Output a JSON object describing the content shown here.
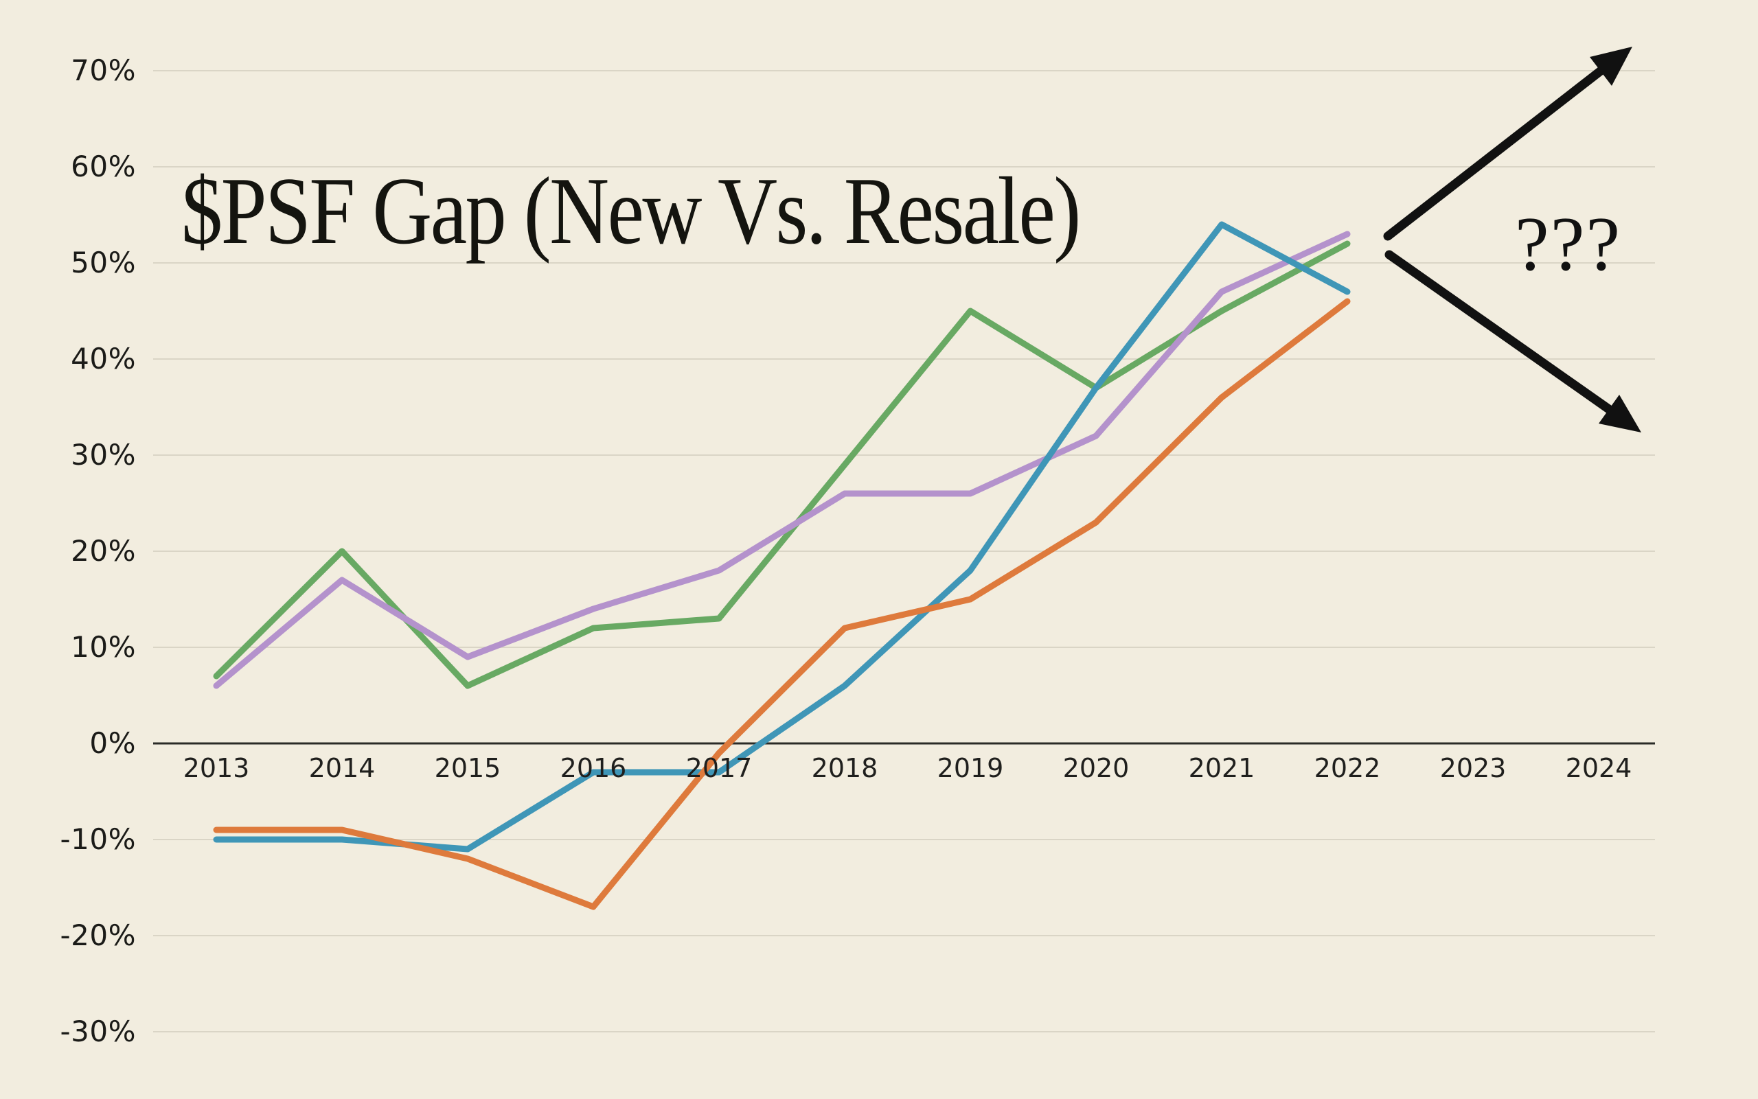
{
  "title": "$PSF Gap (New Vs. Resale)",
  "annotation": {
    "text": "???"
  },
  "colors": {
    "background": "#f2eddf",
    "gridline": "#dad5c6",
    "axis_line": "#2b2b27",
    "label_text": "#1b1b18",
    "annotation_ink": "#111111"
  },
  "chart_data": {
    "type": "line",
    "title": "$PSF Gap (New Vs. Resale)",
    "xlabel": "",
    "ylabel": "",
    "x_categories": [
      "2013",
      "2014",
      "2015",
      "2016",
      "2017",
      "2018",
      "2019",
      "2020",
      "2021",
      "2022",
      "2023",
      "2024"
    ],
    "data_start_year": 2013,
    "series": [
      {
        "name": "green",
        "color": "#68a963",
        "values": [
          7,
          20,
          6,
          12,
          13,
          29,
          45,
          37,
          45,
          52
        ]
      },
      {
        "name": "purple",
        "color": "#b492cc",
        "values": [
          6,
          17,
          9,
          14,
          18,
          26,
          26,
          32,
          47,
          53
        ]
      },
      {
        "name": "blue",
        "color": "#3f96b7",
        "values": [
          -10,
          -10,
          -11,
          -3,
          -3,
          6,
          18,
          37,
          54,
          47
        ]
      },
      {
        "name": "orange",
        "color": "#de7a3c",
        "values": [
          -9,
          -9,
          -12,
          -17,
          -1,
          12,
          15,
          23,
          36,
          46
        ]
      }
    ],
    "y_ticks": [
      {
        "value": 70,
        "label": "70%"
      },
      {
        "value": 60,
        "label": "60%"
      },
      {
        "value": 50,
        "label": "50%"
      },
      {
        "value": 40,
        "label": "40%"
      },
      {
        "value": 30,
        "label": "30%"
      },
      {
        "value": 20,
        "label": "20%"
      },
      {
        "value": 10,
        "label": "10%"
      },
      {
        "value": 0,
        "label": "0%"
      },
      {
        "value": -10,
        "label": "-10%"
      },
      {
        "value": -20,
        "label": "-20%"
      },
      {
        "value": -30,
        "label": "-30%"
      }
    ],
    "ylim": [
      -35,
      75
    ],
    "grid": "horizontal gridlines every 10%, zero line emphasized",
    "legend": "none",
    "annotations": [
      {
        "text": "???",
        "type": "diverging up/down arrows after 2022",
        "position": "right of last data point"
      }
    ]
  }
}
